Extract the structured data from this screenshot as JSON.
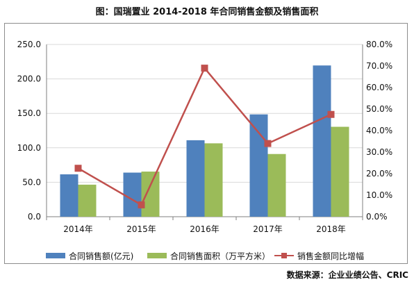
{
  "title": "图：国瑞置业 2014-2018 年合同销售金额及销售面积",
  "source": "数据来源：企业业绩公告、CRIC",
  "colors": {
    "bar1": "#4f81bd",
    "bar2": "#9bbb59",
    "line": "#c0504d",
    "grid": "#d9d9d9"
  },
  "chart_data": {
    "type": "bar",
    "categories": [
      "2014年",
      "2015年",
      "2016年",
      "2017年",
      "2018年"
    ],
    "series": [
      {
        "name": "合同销售额(亿元)",
        "type": "bar",
        "axis": "left",
        "values": [
          61.5,
          64.0,
          111.0,
          148.5,
          219.5
        ]
      },
      {
        "name": "合同销售面积（万平方米）",
        "type": "bar",
        "axis": "left",
        "values": [
          46.5,
          65.5,
          106.5,
          91.0,
          130.5
        ]
      },
      {
        "name": "销售金额同比增幅",
        "type": "line",
        "axis": "right",
        "values": [
          0.225,
          0.055,
          0.69,
          0.34,
          0.475
        ]
      }
    ],
    "y_left": {
      "min": 0,
      "max": 250,
      "ticks": [
        "0.0",
        "50.0",
        "100.0",
        "150.0",
        "200.0",
        "250.0"
      ]
    },
    "y_right": {
      "min": 0,
      "max": 0.8,
      "ticks": [
        "0.0%",
        "10.0%",
        "20.0%",
        "30.0%",
        "40.0%",
        "50.0%",
        "60.0%",
        "70.0%",
        "80.0%"
      ]
    },
    "grid": true,
    "legend": "bottom"
  }
}
